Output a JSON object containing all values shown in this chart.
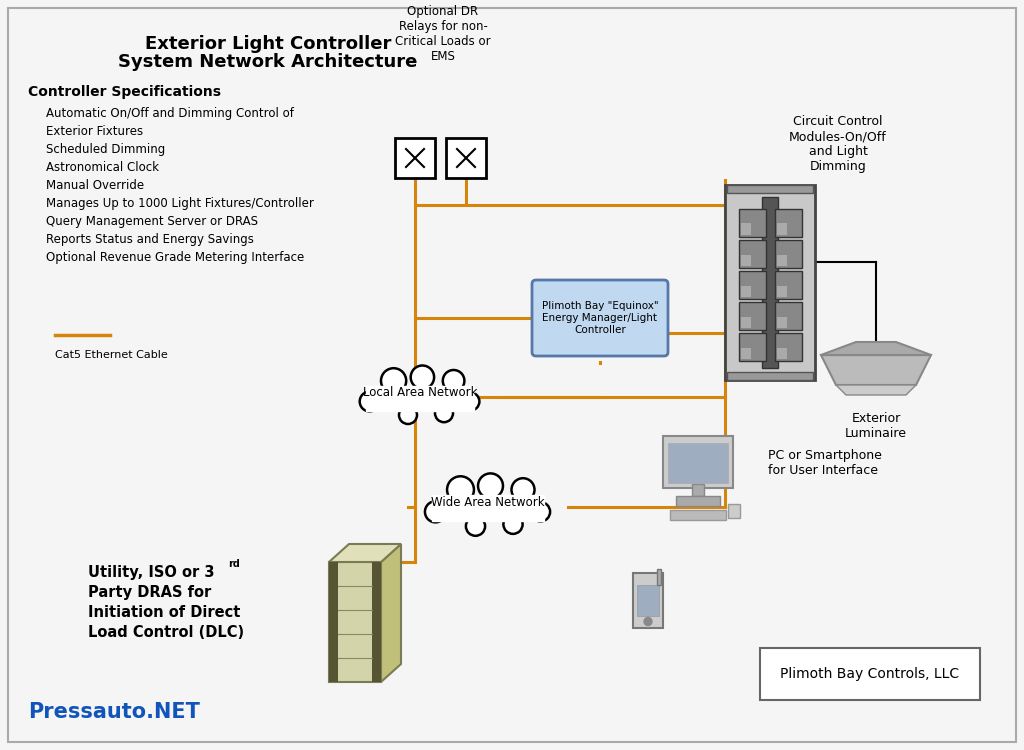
{
  "bg_color": "#f5f5f5",
  "orange_color": "#D4850A",
  "black_color": "#222222",
  "title_line1": "Exterior Light Controller",
  "title_line2": "System Network Architecture",
  "specs_title": "Controller Specifications",
  "specs_lines": [
    "Automatic On/Off and Dimming Control of",
    "Exterior Fixtures",
    "Scheduled Dimming",
    "Astronomical Clock",
    "Manual Override",
    "Manages Up to 1000 Light Fixtures/Controller",
    "Query Management Server or DRAS",
    "Reports Status and Energy Savings",
    "Optional Revenue Grade Metering Interface"
  ],
  "optional_dr": "Optional DR\nRelays for non-\nCritical Loads or\nEMS",
  "circuit_label": "Circuit Control\nModules-On/Off\nand Light\nDimming",
  "plimoth_label": "Plimoth Bay \"Equinox\"\nEnergy Manager/Light\nController",
  "lan_label": "Local Area Network",
  "wan_label": "Wide Area Network",
  "luminaire_label": "Exterior\nLuminaire",
  "pc_label": "PC or Smartphone\nfor User Interface",
  "utility_label_lines": [
    "Utility, ISO or 3",
    "Party DRAS for",
    "Initiation of Direct",
    "Load Control (DLC)"
  ],
  "cat5_label": "Cat5 Ethernet Cable",
  "plimoth_bay_label": "Plimoth Bay Controls, LLC",
  "footer": "Pressauto.NET",
  "footer_color": "#1155bb"
}
